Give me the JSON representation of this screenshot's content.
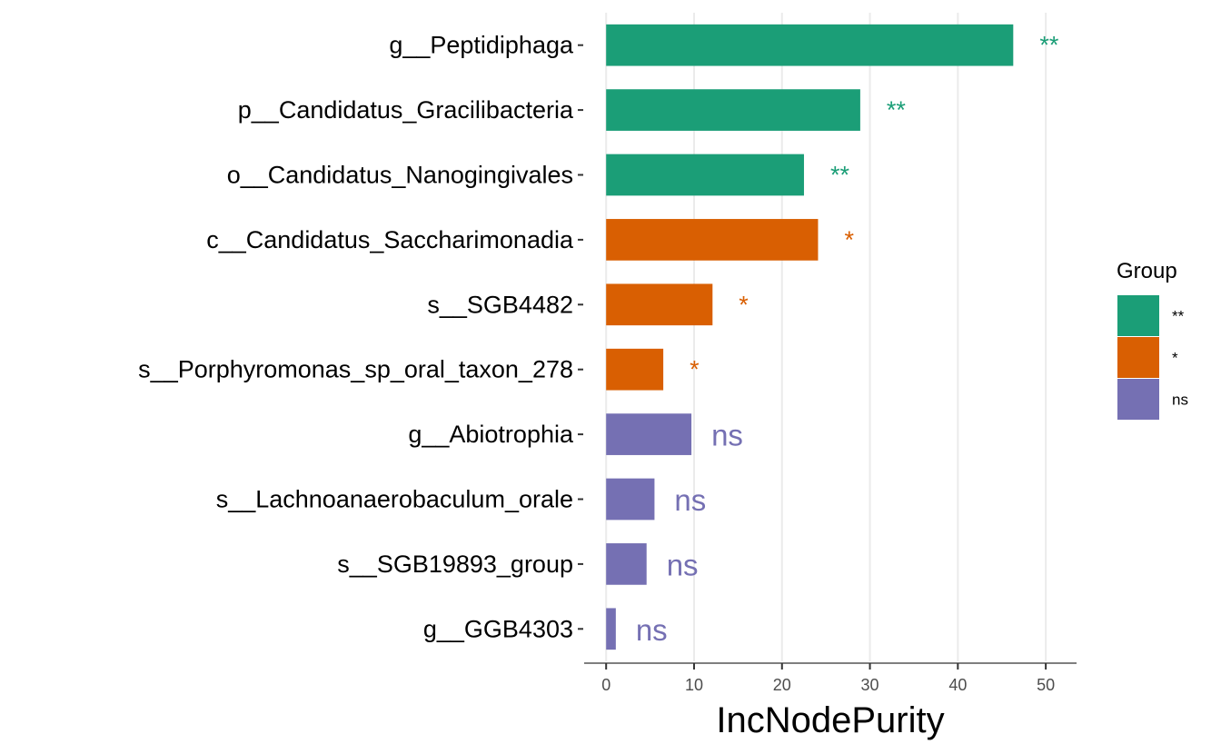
{
  "chart_data": {
    "type": "bar",
    "orientation": "horizontal",
    "xlabel": "IncNodePurity",
    "ylabel": "",
    "xlim": [
      -2.5,
      53.5
    ],
    "xticks": [
      0,
      10,
      20,
      30,
      40,
      50
    ],
    "grid": "vertical-major",
    "categories": [
      "g__Peptidiphaga",
      "p__Candidatus_Gracilibacteria",
      "o__Candidatus_Nanogingivales",
      "c__Candidatus_Saccharimonadia",
      "s__SGB4482",
      "s__Porphyromonas_sp_oral_taxon_278",
      "g__Abiotrophia",
      "s__Lachnoanaerobaculum_orale",
      "s__SGB19893_group",
      "g__GGB4303"
    ],
    "values": [
      46.3,
      28.9,
      22.5,
      24.1,
      12.1,
      6.5,
      9.7,
      5.5,
      4.6,
      1.1
    ],
    "groups": [
      "**",
      "**",
      "**",
      "*",
      "*",
      "*",
      "ns",
      "ns",
      "ns",
      "ns"
    ],
    "legend": {
      "title": "Group",
      "position": "right",
      "entries": [
        {
          "label": "**",
          "color": "#1b9e77"
        },
        {
          "label": "*",
          "color": "#d95f02"
        },
        {
          "label": "ns",
          "color": "#7570b3"
        }
      ]
    }
  }
}
